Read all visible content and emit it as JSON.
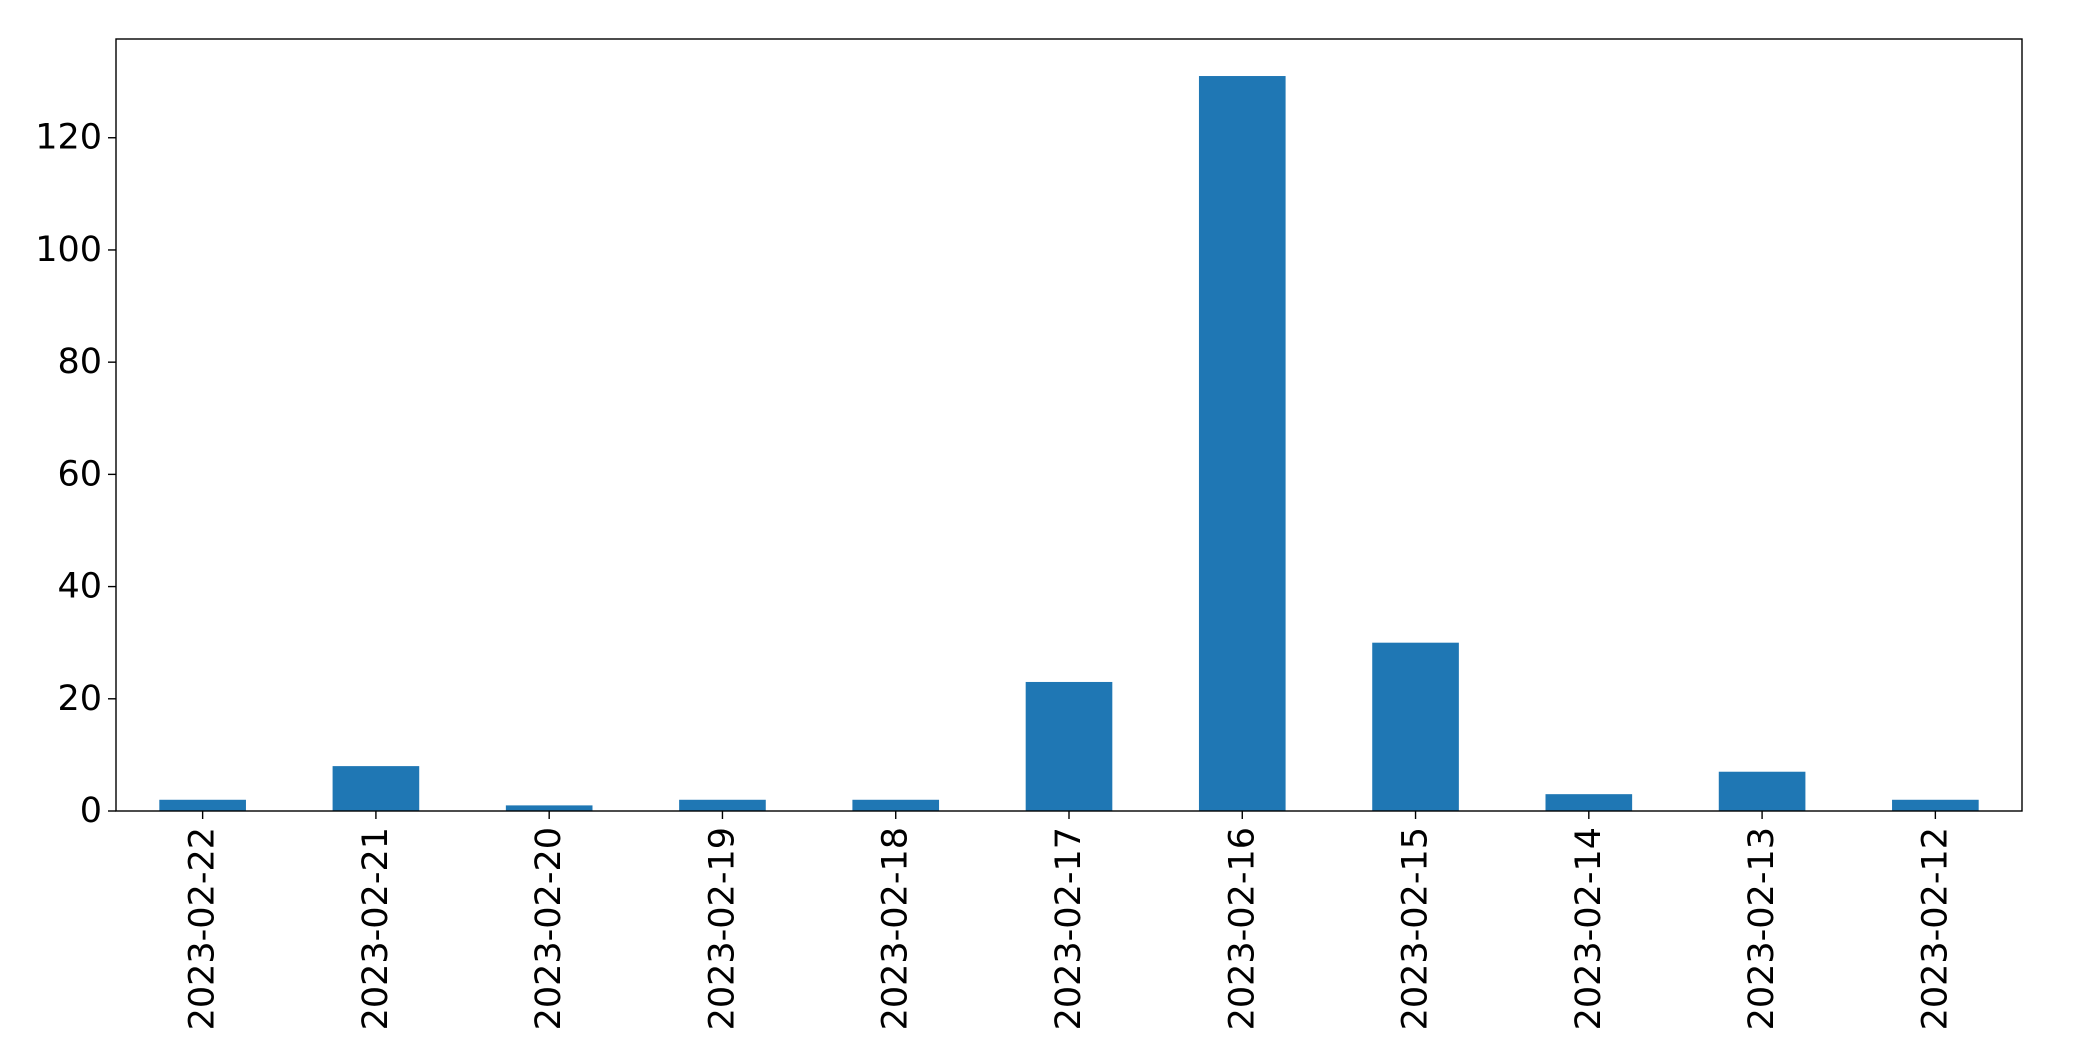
{
  "chart_data": {
    "type": "bar",
    "title": "",
    "xlabel": "",
    "ylabel": "",
    "categories": [
      "2023-02-22",
      "2023-02-21",
      "2023-02-20",
      "2023-02-19",
      "2023-02-18",
      "2023-02-17",
      "2023-02-16",
      "2023-02-15",
      "2023-02-14",
      "2023-02-13",
      "2023-02-12"
    ],
    "values": [
      2,
      8,
      1,
      2,
      2,
      23,
      131,
      30,
      3,
      7,
      2
    ],
    "ylim": [
      0,
      137.6
    ],
    "yticks": [
      0,
      20,
      40,
      60,
      80,
      100,
      120
    ],
    "grid": false,
    "legend": "none",
    "bar_color": "#1f77b4"
  }
}
